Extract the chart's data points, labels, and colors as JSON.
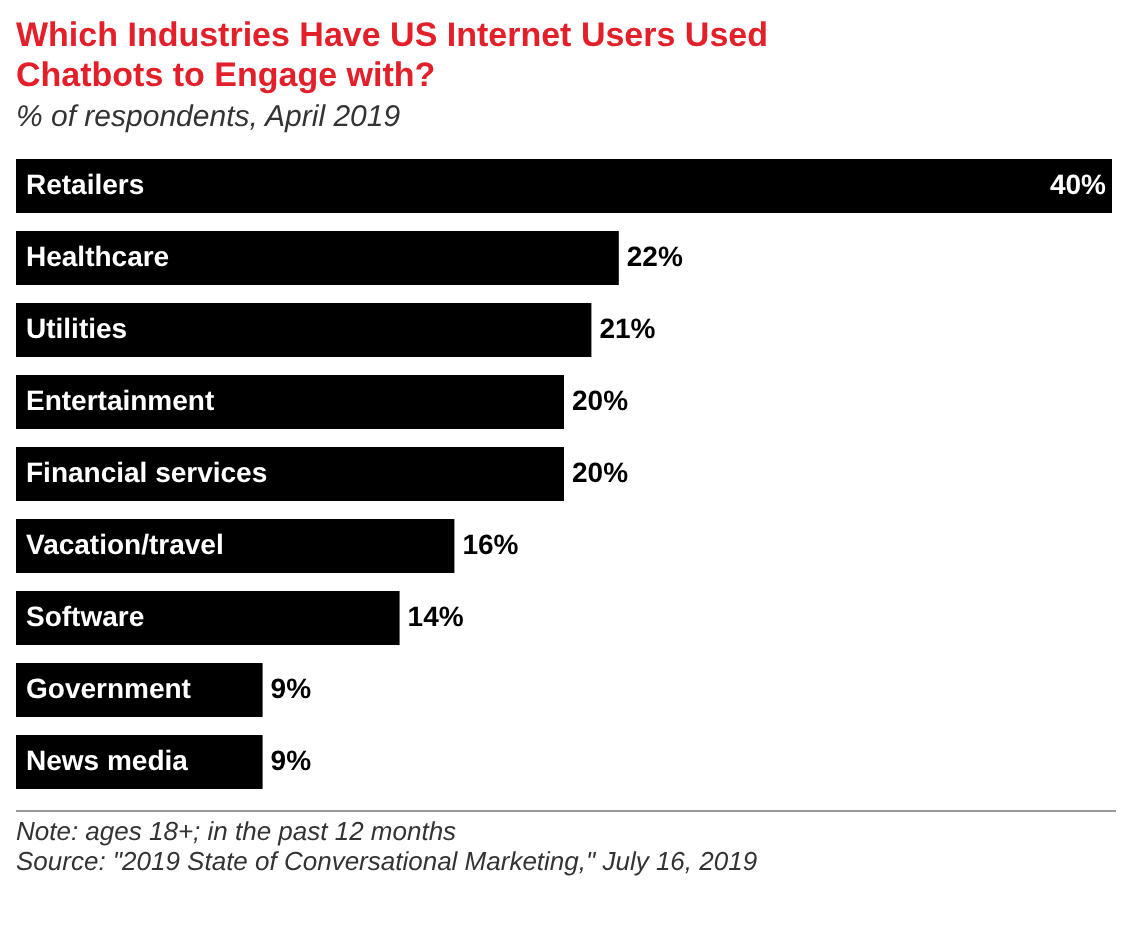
{
  "chart_data": {
    "type": "bar",
    "orientation": "horizontal",
    "title": "Which Industries Have US Internet Users Used Chatbots to Engage with?",
    "subtitle": "% of respondents, April 2019",
    "categories": [
      "Retailers",
      "Healthcare",
      "Utilities",
      "Entertainment",
      "Financial services",
      "Vacation/travel",
      "Software",
      "Government",
      "News media"
    ],
    "values": [
      40,
      22,
      21,
      20,
      20,
      16,
      14,
      9,
      9
    ],
    "value_labels": [
      "40%",
      "22%",
      "21%",
      "20%",
      "20%",
      "16%",
      "14%",
      "9%",
      "9%"
    ],
    "color": "#000000",
    "annotations": [
      "Note: ages 18+; in the past 12 months",
      "Source: \"2019 State of Conversational Marketing,\" July 16, 2019"
    ]
  }
}
